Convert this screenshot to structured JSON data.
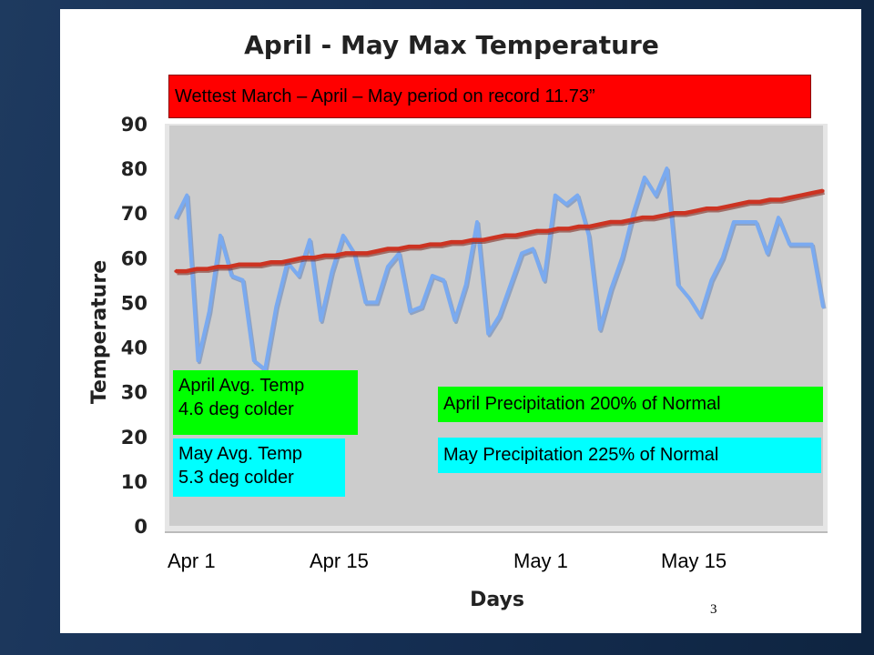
{
  "slide": {
    "page_number": "3",
    "banner": "Wettest March – April – May period on record  11.73”",
    "april_temp_note": [
      "April Avg. Temp",
      "4.6 deg colder"
    ],
    "may_temp_note": [
      "May Avg. Temp",
      "5.3 deg colder"
    ],
    "april_precip_note": "April Precipitation 200% of Normal",
    "may_precip_note": "May Precipitation 225% of Normal"
  },
  "colors": {
    "plot_background": "#cccccc",
    "actual_line": "#7aaaf0",
    "normal_line": "#cc3322",
    "banner": "#ff0000",
    "green_box": "#00ff00",
    "cyan_box": "#00ffff"
  },
  "chart_data": {
    "type": "line",
    "title": "April - May Max Temperature",
    "xlabel": "Days",
    "ylabel": "Temperature",
    "ylim": [
      0,
      90
    ],
    "yticks": [
      0,
      10,
      20,
      30,
      40,
      50,
      60,
      70,
      80,
      90
    ],
    "x_tick_labels": [
      "Apr 1",
      "Apr 15",
      "May 1",
      "May 15"
    ],
    "grid": false,
    "legend": "none",
    "series": [
      {
        "values": [
          69,
          74,
          37,
          48,
          65,
          56,
          55,
          37,
          35,
          49,
          59,
          56,
          64,
          46,
          57,
          65,
          61,
          50,
          50,
          58,
          61,
          48,
          49,
          56,
          55,
          46,
          54,
          68,
          43,
          47,
          54,
          61,
          62,
          55,
          74,
          72,
          74,
          65,
          44,
          53,
          60,
          70,
          78,
          74,
          80,
          54,
          51,
          47,
          55,
          60,
          68,
          68,
          68,
          61,
          69,
          63,
          63,
          63,
          49
        ]
      },
      {
        "values": [
          57,
          57,
          57.5,
          57.5,
          58,
          58,
          58.5,
          58.5,
          58.5,
          59,
          59,
          59.5,
          60,
          60,
          60.5,
          60.5,
          61,
          61,
          61,
          61.5,
          62,
          62,
          62.5,
          62.5,
          63,
          63,
          63.5,
          63.5,
          64,
          64,
          64.5,
          65,
          65,
          65.5,
          66,
          66,
          66.5,
          66.5,
          67,
          67,
          67.5,
          68,
          68,
          68.5,
          69,
          69,
          69.5,
          70,
          70,
          70.5,
          71,
          71,
          71.5,
          72,
          72.5,
          72.5,
          73,
          73,
          73.5,
          74,
          74.5,
          75
        ]
      }
    ]
  }
}
